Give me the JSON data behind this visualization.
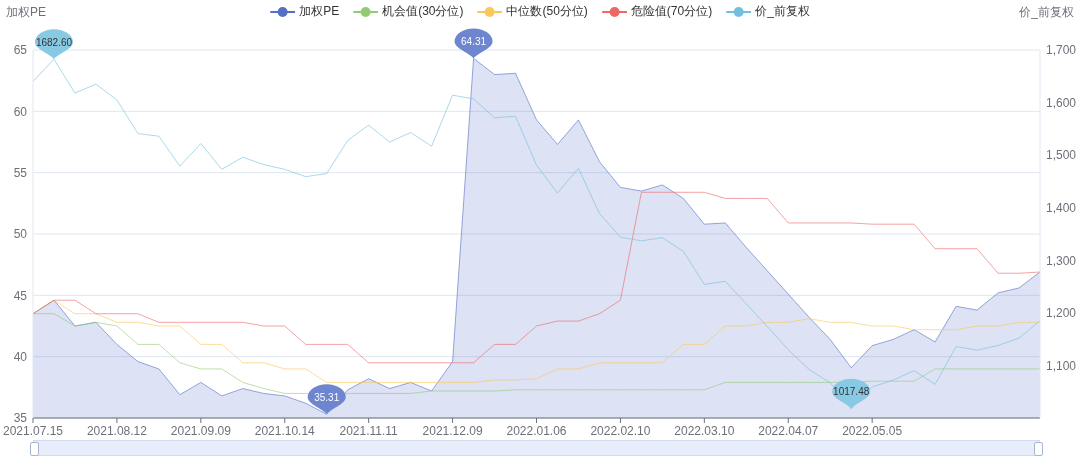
{
  "chart_data": {
    "type": "line",
    "ylabel": "加权PE",
    "y2label": "价_前复权",
    "categories": [
      "2021.07.15",
      null,
      null,
      null,
      "2021.08.12",
      null,
      null,
      null,
      "2021.09.09",
      null,
      null,
      null,
      "2021.10.14",
      null,
      null,
      null,
      "2021.11.11",
      null,
      null,
      null,
      "2021.12.09",
      null,
      null,
      null,
      "2022.01.06",
      null,
      null,
      null,
      "2022.02.10",
      null,
      null,
      null,
      "2022.03.10",
      null,
      null,
      null,
      "2022.04.07",
      null,
      null,
      null,
      "2022.05.05",
      null,
      null,
      null,
      null,
      null,
      null,
      null,
      null
    ],
    "series": [
      {
        "name": "加权PE",
        "type": "area",
        "color": "#5470c6",
        "values": [
          43.5,
          44.6,
          42.5,
          42.8,
          41.0,
          39.6,
          39.0,
          36.9,
          37.9,
          36.8,
          37.4,
          37.0,
          36.8,
          36.2,
          35.31,
          37.3,
          38.2,
          37.4,
          37.9,
          37.2,
          39.6,
          64.31,
          63.0,
          63.1,
          59.3,
          57.3,
          59.3,
          55.9,
          53.8,
          53.5,
          54.0,
          52.9,
          50.8,
          50.9,
          48.9,
          47.0,
          45.1,
          43.2,
          41.4,
          39.1,
          40.9,
          41.4,
          42.2,
          41.2,
          44.1,
          43.8,
          45.2,
          45.6,
          46.9
        ]
      },
      {
        "name": "机会值(30分位)",
        "color": "#91cc75",
        "values": [
          43.5,
          43.5,
          42.5,
          42.8,
          42.5,
          41.0,
          41.0,
          39.5,
          39.0,
          39.0,
          37.9,
          37.4,
          37.0,
          37.0,
          null,
          37.0,
          37.0,
          37.0,
          37.0,
          37.2,
          37.2,
          37.2,
          37.2,
          37.3,
          37.3,
          37.3,
          37.3,
          37.3,
          37.3,
          37.3,
          37.3,
          37.3,
          37.3,
          37.9,
          37.9,
          37.9,
          37.9,
          37.9,
          37.9,
          null,
          38.0,
          38.0,
          38.0,
          39.0,
          39.0,
          39.0,
          39.0,
          39.0,
          39.0
        ]
      },
      {
        "name": "中位数(50分位)",
        "color": "#fac858",
        "values": [
          43.5,
          44.6,
          43.5,
          43.5,
          42.8,
          42.8,
          42.5,
          42.5,
          41.0,
          41.0,
          39.5,
          39.5,
          39.0,
          39.0,
          37.9,
          37.9,
          37.9,
          37.9,
          37.9,
          37.9,
          37.9,
          37.9,
          38.1,
          38.1,
          38.2,
          39.0,
          39.0,
          39.5,
          39.5,
          39.5,
          39.5,
          41.0,
          41.0,
          42.5,
          42.5,
          42.8,
          42.8,
          43.1,
          42.8,
          42.8,
          42.5,
          42.5,
          42.2,
          42.2,
          42.2,
          42.5,
          42.5,
          42.8,
          42.8
        ]
      },
      {
        "name": "危险值(70分位)",
        "color": "#ee6666",
        "values": [
          43.5,
          44.6,
          44.6,
          43.5,
          43.5,
          43.5,
          42.8,
          42.8,
          42.8,
          42.8,
          42.8,
          42.5,
          42.5,
          41.0,
          41.0,
          41.0,
          39.5,
          39.5,
          39.5,
          39.5,
          39.5,
          39.5,
          41.0,
          41.0,
          42.5,
          42.9,
          42.9,
          43.5,
          44.6,
          53.4,
          53.4,
          53.4,
          53.4,
          52.9,
          52.9,
          52.9,
          50.9,
          50.9,
          50.9,
          50.9,
          50.8,
          50.8,
          50.8,
          48.8,
          48.8,
          48.8,
          46.8,
          46.8,
          46.9
        ]
      },
      {
        "name": "价_前复权",
        "color": "#73c0de",
        "axis": "y2",
        "values": [
          1640,
          1682.6,
          1618,
          1635,
          1605,
          1541,
          1536,
          1479,
          1522,
          1473,
          1496,
          1482,
          1473,
          1459,
          1465,
          1528,
          1557,
          1525,
          1543,
          1517,
          1614,
          1607,
          1571,
          1574,
          1481,
          1428,
          1475,
          1389,
          1344,
          1337,
          1343,
          1317,
          1254,
          1260,
          1217,
          1174,
          1130,
          1092,
          1067,
          1017.48,
          1059,
          1072,
          1090,
          1064,
          1136,
          1129,
          1138,
          1152,
          1185
        ]
      }
    ],
    "ylim": [
      35,
      65
    ],
    "yticks": [
      35,
      40,
      45,
      50,
      55,
      60,
      65
    ],
    "y2lim": [
      1000,
      1700
    ],
    "y2ticks": [
      {
        "value": 1100,
        "label": "1,100"
      },
      {
        "value": 1200,
        "label": "1,200"
      },
      {
        "value": 1300,
        "label": "1,300"
      },
      {
        "value": 1400,
        "label": "1,400"
      },
      {
        "value": 1500,
        "label": "1,500"
      },
      {
        "value": 1600,
        "label": "1,600"
      },
      {
        "value": 1700,
        "label": "1,700"
      }
    ],
    "grid": "y",
    "legend": "top",
    "marker": "none",
    "line_style": "solid",
    "annotations": [
      "1682.60",
      {
        "text": "64.31",
        "y": 64.31
      },
      {
        "text": "35.31",
        "y": 35.31
      },
      "1017.48"
    ]
  }
}
